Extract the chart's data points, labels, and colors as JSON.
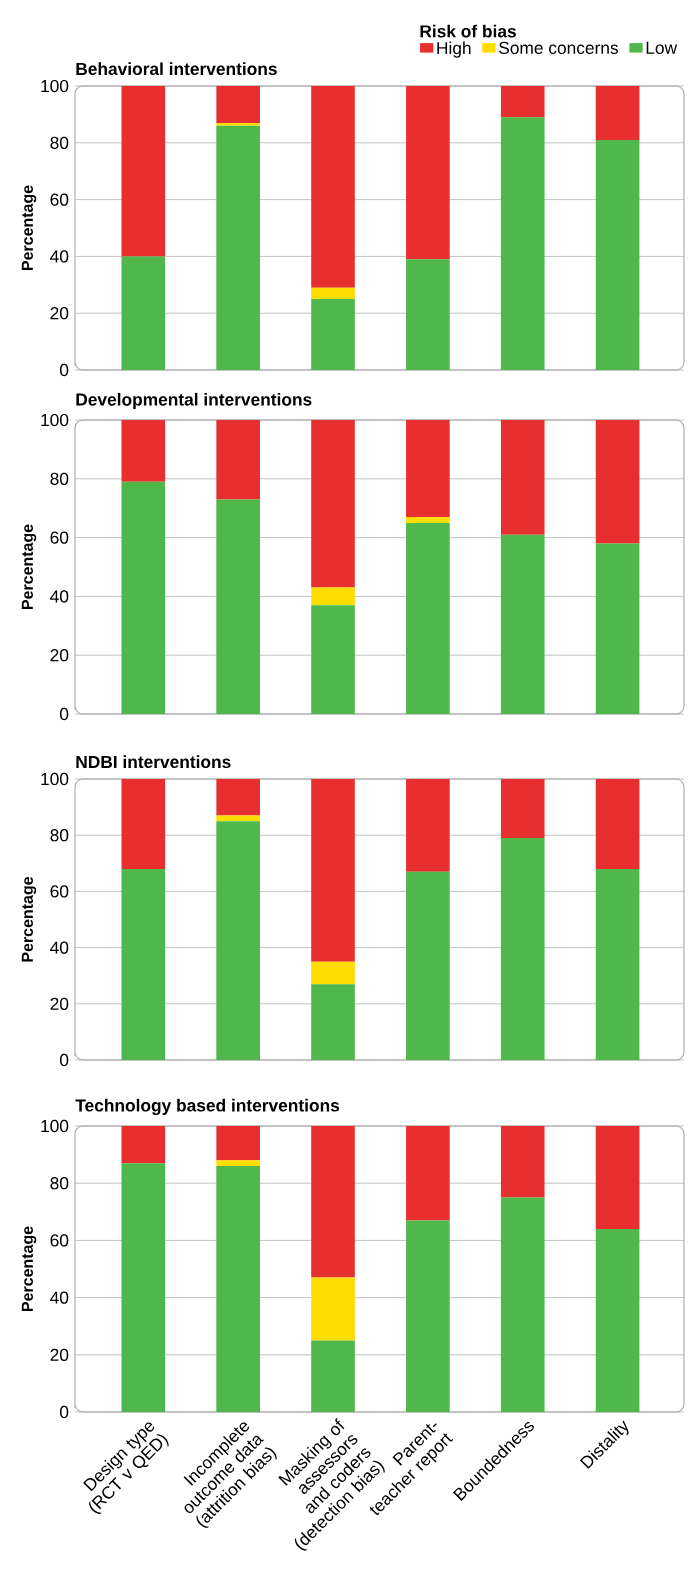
{
  "chart_data": [
    {
      "type": "bar",
      "stacked": true,
      "title": "Behavioral interventions",
      "ylabel": "Percentage",
      "legend": "top right",
      "legend_title": "Risk of bias",
      "grid": "y",
      "tick_labels": "y",
      "ylim": [
        0,
        100
      ],
      "yticks": [
        0,
        20,
        40,
        60,
        80,
        100
      ],
      "categories": [
        null,
        null,
        null,
        null,
        null,
        null
      ],
      "series": [
        {
          "name": "Low",
          "color": "#50b74a",
          "values": [
            40,
            86,
            25,
            39,
            89,
            81
          ]
        },
        {
          "name": "Some concerns",
          "color": "#ffdd00",
          "values": [
            0,
            1,
            4,
            0,
            0,
            0
          ]
        },
        {
          "name": "High",
          "color": "#e82f2f",
          "values": [
            60,
            13,
            71,
            61,
            11,
            19
          ]
        }
      ]
    },
    {
      "type": "bar",
      "stacked": true,
      "title": "Developmental interventions",
      "ylabel": "Percentage",
      "grid": "y",
      "tick_labels": "y",
      "ylim": [
        0,
        100
      ],
      "yticks": [
        0,
        20,
        40,
        60,
        80,
        100
      ],
      "categories": [
        null,
        null,
        null,
        null,
        null,
        null
      ],
      "series": [
        {
          "color": "#50b74a",
          "values": [
            79,
            73,
            37,
            65,
            61,
            58
          ]
        },
        {
          "color": "#ffdd00",
          "values": [
            0,
            0,
            6,
            2,
            0,
            0
          ]
        },
        {
          "color": "#e82f2f",
          "values": [
            21,
            27,
            57,
            33,
            39,
            42
          ]
        }
      ]
    },
    {
      "type": "bar",
      "stacked": true,
      "title": "NDBI interventions",
      "ylabel": "Percentage",
      "grid": "y",
      "tick_labels": "y",
      "ylim": [
        0,
        100
      ],
      "yticks": [
        0,
        20,
        40,
        60,
        80,
        100
      ],
      "categories": [
        null,
        null,
        null,
        null,
        null,
        null
      ],
      "series": [
        {
          "color": "#50b74a",
          "values": [
            68,
            85,
            27,
            67,
            79,
            68
          ]
        },
        {
          "color": "#ffdd00",
          "values": [
            0,
            2,
            8,
            0,
            0,
            0
          ]
        },
        {
          "color": "#e82f2f",
          "values": [
            32,
            13,
            65,
            33,
            21,
            32
          ]
        }
      ]
    },
    {
      "type": "bar",
      "stacked": true,
      "title": "Technology based interventions",
      "ylabel": "Percentage",
      "grid": "y",
      "ylim": [
        0,
        100
      ],
      "yticks": [
        0,
        20,
        40,
        60,
        80,
        100
      ],
      "categories": [
        "Design type (RCT v QED)",
        "Incomplete outcome data (attrition bias)",
        "Masking of assessors and coders (detection bias)",
        "Parent-teacher report",
        "Boundedness",
        "Distality"
      ],
      "series": [
        {
          "color": "#50b74a",
          "values": [
            87,
            86,
            25,
            67,
            75,
            64
          ]
        },
        {
          "color": "#ffdd00",
          "values": [
            0,
            2,
            22,
            0,
            0,
            0
          ]
        },
        {
          "color": "#e82f2f",
          "values": [
            13,
            12,
            53,
            33,
            25,
            36
          ]
        }
      ]
    }
  ]
}
